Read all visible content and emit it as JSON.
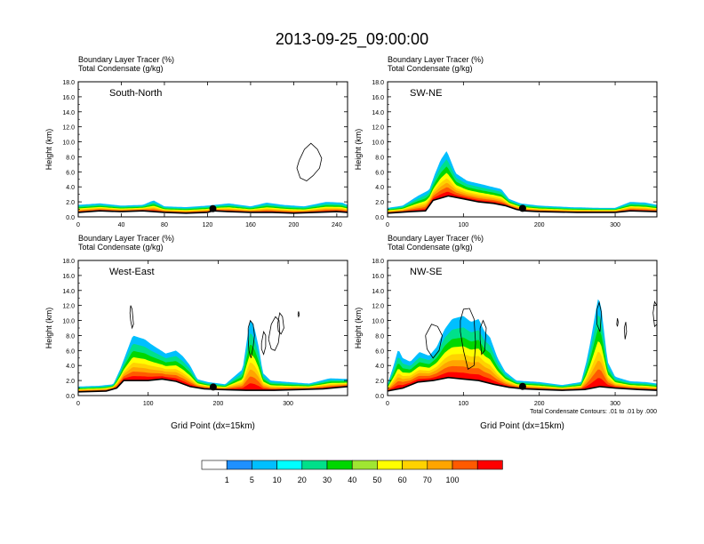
{
  "title": "2013-09-25_09:00:00",
  "colors": {
    "contour": "#000000",
    "palette": [
      "#ffffff",
      "#1e90ff",
      "#00bfff",
      "#00ffff",
      "#00e08a",
      "#00d700",
      "#a0e632",
      "#ffff00",
      "#ffd200",
      "#ffa500",
      "#ff5a00",
      "#ff0000"
    ]
  },
  "colorbar": {
    "labels": [
      "1",
      "5",
      "10",
      "20",
      "30",
      "40",
      "50",
      "60",
      "70",
      "100"
    ]
  },
  "chart_data": [
    {
      "type": "heatmap",
      "panel": "top-left",
      "label": "South-North",
      "header": [
        "Boundary Layer Tracer   (%)",
        "Total Condensate   (g/kg)"
      ],
      "ylabel": "Height (km)",
      "xlabel": "",
      "xlim": [
        0,
        250
      ],
      "ylim": [
        0,
        18
      ],
      "xticks": [
        0,
        40,
        80,
        120,
        160,
        200,
        240
      ],
      "yticks": [
        "0.0",
        "2.0",
        "4.0",
        "6.0",
        "8.0",
        "10.0",
        "12.0",
        "14.0",
        "16.0",
        "18.0"
      ],
      "marker_x": 125,
      "terrain": [
        [
          0,
          0.6
        ],
        [
          20,
          0.8
        ],
        [
          40,
          0.7
        ],
        [
          60,
          0.8
        ],
        [
          80,
          0.6
        ],
        [
          100,
          0.5
        ],
        [
          120,
          0.6
        ],
        [
          125,
          0.8
        ],
        [
          140,
          0.7
        ],
        [
          160,
          0.6
        ],
        [
          180,
          0.6
        ],
        [
          200,
          0.5
        ],
        [
          220,
          0.6
        ],
        [
          240,
          0.7
        ],
        [
          250,
          0.6
        ]
      ],
      "tracer": [
        [
          0,
          1.6
        ],
        [
          20,
          1.8
        ],
        [
          40,
          1.5
        ],
        [
          60,
          1.6
        ],
        [
          70,
          2.2
        ],
        [
          80,
          1.4
        ],
        [
          100,
          1.3
        ],
        [
          120,
          1.5
        ],
        [
          140,
          1.8
        ],
        [
          160,
          1.4
        ],
        [
          175,
          1.9
        ],
        [
          190,
          1.6
        ],
        [
          210,
          1.4
        ],
        [
          230,
          2.0
        ],
        [
          245,
          1.9
        ],
        [
          250,
          1.6
        ]
      ],
      "contours": [
        [
          [
            205,
            7.5
          ],
          [
            210,
            9.0
          ],
          [
            216,
            9.8
          ],
          [
            222,
            9.0
          ],
          [
            226,
            7.8
          ],
          [
            224,
            6.5
          ],
          [
            218,
            5.5
          ],
          [
            212,
            4.8
          ],
          [
            206,
            5.2
          ],
          [
            203,
            6.5
          ],
          [
            205,
            7.5
          ]
        ]
      ]
    },
    {
      "type": "heatmap",
      "panel": "top-right",
      "label": "SW-NE",
      "header": [
        "Boundary Layer Tracer   (%)",
        "Total Condensate   (g/kg)"
      ],
      "ylabel": "Height (km)",
      "xlabel": "",
      "xlim": [
        0,
        355
      ],
      "ylim": [
        0,
        18
      ],
      "xticks": [
        0,
        100,
        200,
        300
      ],
      "yticks": [
        "0.0",
        "2.0",
        "4.0",
        "6.0",
        "8.0",
        "10.0",
        "12.0",
        "14.0",
        "16.0",
        "18.0"
      ],
      "marker_x": 178,
      "terrain": [
        [
          0,
          0.5
        ],
        [
          30,
          0.7
        ],
        [
          50,
          0.8
        ],
        [
          60,
          2.2
        ],
        [
          80,
          2.8
        ],
        [
          100,
          2.4
        ],
        [
          120,
          2.0
        ],
        [
          140,
          1.8
        ],
        [
          155,
          1.5
        ],
        [
          170,
          1.0
        ],
        [
          180,
          0.8
        ],
        [
          200,
          0.7
        ],
        [
          250,
          0.6
        ],
        [
          300,
          0.6
        ],
        [
          320,
          0.8
        ],
        [
          355,
          0.7
        ]
      ],
      "tracer": [
        [
          0,
          1.2
        ],
        [
          20,
          1.5
        ],
        [
          40,
          2.8
        ],
        [
          55,
          3.6
        ],
        [
          62,
          5.6
        ],
        [
          70,
          7.6
        ],
        [
          78,
          8.8
        ],
        [
          90,
          5.8
        ],
        [
          105,
          4.8
        ],
        [
          130,
          4.2
        ],
        [
          150,
          3.7
        ],
        [
          160,
          2.4
        ],
        [
          175,
          1.8
        ],
        [
          200,
          1.5
        ],
        [
          240,
          1.3
        ],
        [
          280,
          1.2
        ],
        [
          300,
          1.2
        ],
        [
          320,
          2.0
        ],
        [
          340,
          1.9
        ],
        [
          355,
          1.6
        ]
      ],
      "contours": []
    },
    {
      "type": "heatmap",
      "panel": "bottom-left",
      "label": "West-East",
      "header": [
        "Boundary Layer Tracer   (%)",
        "Total Condensate   (g/kg)"
      ],
      "ylabel": "Height (km)",
      "xlabel": "Grid Point (dx=15km)",
      "xlim": [
        0,
        385
      ],
      "ylim": [
        0,
        18
      ],
      "xticks": [
        0,
        100,
        200,
        300
      ],
      "yticks": [
        "0.0",
        "2.0",
        "4.0",
        "6.0",
        "8.0",
        "10.0",
        "12.0",
        "14.0",
        "16.0",
        "18.0"
      ],
      "marker_x": 193,
      "terrain": [
        [
          0,
          0.5
        ],
        [
          40,
          0.6
        ],
        [
          55,
          1.0
        ],
        [
          65,
          2.0
        ],
        [
          80,
          2.0
        ],
        [
          100,
          2.0
        ],
        [
          120,
          2.2
        ],
        [
          140,
          1.9
        ],
        [
          160,
          1.2
        ],
        [
          180,
          0.9
        ],
        [
          200,
          0.8
        ],
        [
          240,
          0.7
        ],
        [
          280,
          0.7
        ],
        [
          320,
          0.8
        ],
        [
          350,
          0.9
        ],
        [
          385,
          1.2
        ]
      ],
      "tracer": [
        [
          0,
          1.2
        ],
        [
          30,
          1.3
        ],
        [
          50,
          1.5
        ],
        [
          60,
          3.5
        ],
        [
          70,
          6.0
        ],
        [
          78,
          8.0
        ],
        [
          95,
          7.5
        ],
        [
          105,
          6.8
        ],
        [
          125,
          5.6
        ],
        [
          140,
          6.0
        ],
        [
          150,
          5.2
        ],
        [
          160,
          4.0
        ],
        [
          170,
          2.2
        ],
        [
          185,
          1.8
        ],
        [
          210,
          1.5
        ],
        [
          235,
          3.5
        ],
        [
          242,
          8.0
        ],
        [
          246,
          10.2
        ],
        [
          252,
          9.0
        ],
        [
          258,
          6.5
        ],
        [
          264,
          3.0
        ],
        [
          275,
          2.0
        ],
        [
          300,
          1.8
        ],
        [
          330,
          1.6
        ],
        [
          360,
          2.3
        ],
        [
          385,
          2.2
        ]
      ],
      "contours": [
        [
          [
            75,
            12.0
          ],
          [
            77,
            11.5
          ],
          [
            78,
            10.5
          ],
          [
            79,
            9.5
          ],
          [
            77,
            9.0
          ],
          [
            75,
            10.0
          ],
          [
            74,
            11.0
          ],
          [
            75,
            12.0
          ]
        ],
        [
          [
            243,
            9.0
          ],
          [
            246,
            10.0
          ],
          [
            250,
            9.5
          ],
          [
            252,
            8.0
          ],
          [
            250,
            6.5
          ],
          [
            247,
            5.0
          ],
          [
            244,
            6.0
          ],
          [
            243,
            7.5
          ],
          [
            243,
            9.0
          ]
        ],
        [
          [
            262,
            7.0
          ],
          [
            265,
            8.5
          ],
          [
            268,
            8.0
          ],
          [
            268,
            6.5
          ],
          [
            265,
            5.5
          ],
          [
            262,
            6.2
          ],
          [
            262,
            7.0
          ]
        ],
        [
          [
            272,
            7.5
          ],
          [
            276,
            9.5
          ],
          [
            282,
            10.5
          ],
          [
            287,
            10.0
          ],
          [
            288,
            8.5
          ],
          [
            286,
            7.0
          ],
          [
            281,
            6.0
          ],
          [
            276,
            6.2
          ],
          [
            272,
            7.5
          ]
        ],
        [
          [
            285,
            9.5
          ],
          [
            288,
            11.0
          ],
          [
            292,
            10.5
          ],
          [
            294,
            9.0
          ],
          [
            290,
            8.2
          ],
          [
            286,
            8.6
          ],
          [
            285,
            9.5
          ]
        ],
        [
          [
            314,
            10.8
          ],
          [
            315,
            11.2
          ],
          [
            316,
            10.8
          ],
          [
            315,
            10.5
          ],
          [
            314,
            10.8
          ]
        ]
      ]
    },
    {
      "type": "heatmap",
      "panel": "bottom-right",
      "label": "NW-SE",
      "header": [
        "Boundary Layer Tracer   (%)",
        "Total Condensate   (g/kg)"
      ],
      "ylabel": "Height (km)",
      "xlabel": "Grid Point (dx=15km)",
      "xlim": [
        0,
        355
      ],
      "ylim": [
        0,
        18
      ],
      "xticks": [
        0,
        100,
        200,
        300
      ],
      "yticks": [
        "0.0",
        "2.0",
        "4.0",
        "6.0",
        "8.0",
        "10.0",
        "12.0",
        "14.0",
        "16.0",
        "18.0"
      ],
      "marker_x": 178,
      "note": "Total Condensate Contours: .01 to .01 by .000",
      "terrain": [
        [
          0,
          0.6
        ],
        [
          20,
          1.0
        ],
        [
          40,
          1.8
        ],
        [
          60,
          2.0
        ],
        [
          80,
          2.4
        ],
        [
          100,
          2.2
        ],
        [
          120,
          2.0
        ],
        [
          140,
          1.5
        ],
        [
          160,
          1.1
        ],
        [
          180,
          0.9
        ],
        [
          200,
          0.8
        ],
        [
          230,
          0.7
        ],
        [
          260,
          0.8
        ],
        [
          280,
          1.2
        ],
        [
          300,
          1.0
        ],
        [
          330,
          0.8
        ],
        [
          355,
          0.7
        ]
      ],
      "tracer": [
        [
          0,
          1.5
        ],
        [
          8,
          4.0
        ],
        [
          14,
          6.2
        ],
        [
          20,
          5.0
        ],
        [
          30,
          4.5
        ],
        [
          42,
          5.8
        ],
        [
          55,
          5.3
        ],
        [
          65,
          6.5
        ],
        [
          75,
          8.8
        ],
        [
          85,
          10.2
        ],
        [
          100,
          10.6
        ],
        [
          110,
          9.8
        ],
        [
          120,
          10.2
        ],
        [
          128,
          8.5
        ],
        [
          135,
          7.8
        ],
        [
          145,
          5.0
        ],
        [
          155,
          3.2
        ],
        [
          170,
          2.0
        ],
        [
          200,
          1.8
        ],
        [
          230,
          1.4
        ],
        [
          255,
          1.8
        ],
        [
          262,
          4.5
        ],
        [
          268,
          7.5
        ],
        [
          274,
          11.0
        ],
        [
          278,
          13.2
        ],
        [
          282,
          11.5
        ],
        [
          286,
          8.0
        ],
        [
          290,
          4.5
        ],
        [
          300,
          2.5
        ],
        [
          320,
          1.9
        ],
        [
          340,
          1.8
        ],
        [
          355,
          1.6
        ]
      ],
      "contours": [
        [
          [
            50,
            8.0
          ],
          [
            58,
            9.5
          ],
          [
            66,
            9.2
          ],
          [
            72,
            8.0
          ],
          [
            68,
            6.0
          ],
          [
            60,
            5.0
          ],
          [
            52,
            6.2
          ],
          [
            50,
            8.0
          ]
        ],
        [
          [
            96,
            10.0
          ],
          [
            100,
            11.5
          ],
          [
            108,
            11.6
          ],
          [
            114,
            10.2
          ],
          [
            116,
            7.0
          ],
          [
            114,
            4.0
          ],
          [
            106,
            3.5
          ],
          [
            100,
            6.0
          ],
          [
            96,
            8.5
          ],
          [
            96,
            10.0
          ]
        ],
        [
          [
            122,
            9.0
          ],
          [
            126,
            10.0
          ],
          [
            130,
            9.0
          ],
          [
            128,
            6.0
          ],
          [
            124,
            5.5
          ],
          [
            122,
            7.5
          ],
          [
            122,
            9.0
          ]
        ],
        [
          [
            276,
            11.5
          ],
          [
            279,
            12.4
          ],
          [
            282,
            11.0
          ],
          [
            280,
            8.5
          ],
          [
            276,
            9.5
          ],
          [
            276,
            11.5
          ]
        ],
        [
          [
            302,
            9.5
          ],
          [
            303,
            10.3
          ],
          [
            304,
            9.8
          ],
          [
            303,
            9.2
          ],
          [
            302,
            9.5
          ]
        ],
        [
          [
            312,
            9.0
          ],
          [
            314,
            9.8
          ],
          [
            315,
            8.5
          ],
          [
            313,
            7.5
          ],
          [
            312,
            9.0
          ]
        ],
        [
          [
            350,
            11.0
          ],
          [
            352,
            12.5
          ],
          [
            355,
            12.0
          ],
          [
            355,
            9.5
          ],
          [
            352,
            9.2
          ],
          [
            350,
            11.0
          ]
        ]
      ]
    }
  ]
}
